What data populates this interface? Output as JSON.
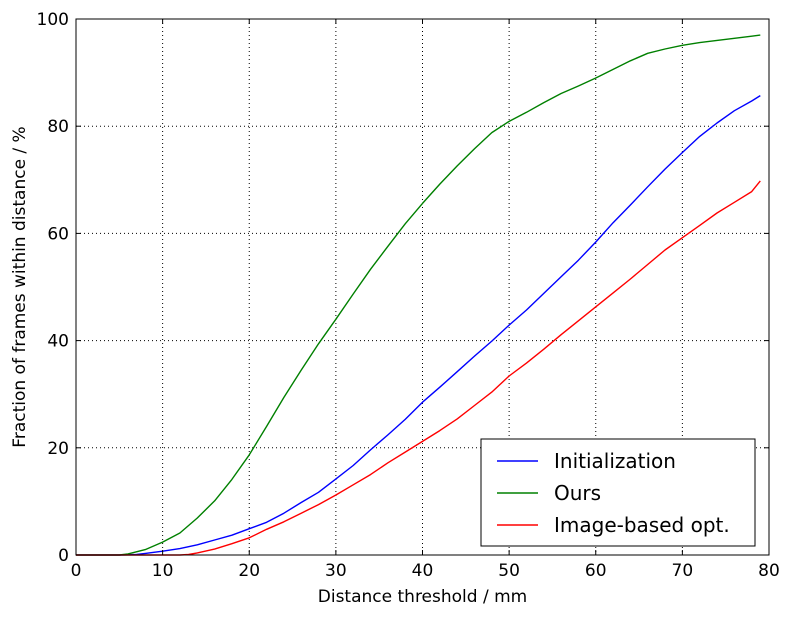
{
  "chart_data": {
    "type": "line",
    "title": "",
    "xlabel": "Distance threshold / mm",
    "ylabel": "Fraction of frames within distance / %",
    "xlim": [
      0,
      80
    ],
    "ylim": [
      0,
      100
    ],
    "xticks": [
      0,
      10,
      20,
      30,
      40,
      50,
      60,
      70,
      80
    ],
    "yticks": [
      0,
      20,
      40,
      60,
      80,
      100
    ],
    "grid": true,
    "legend_position": "lower-right",
    "series": [
      {
        "name": "Initialization",
        "color": "#0000ff",
        "x": [
          0,
          5,
          7,
          8,
          10,
          12,
          14,
          16,
          18,
          20,
          22,
          24,
          26,
          28,
          30,
          32,
          34,
          36,
          38,
          40,
          42,
          44,
          46,
          48,
          50,
          52,
          54,
          56,
          58,
          60,
          62,
          64,
          66,
          68,
          70,
          72,
          74,
          76,
          78,
          79
        ],
        "y": [
          0,
          0,
          0.1,
          0.3,
          0.7,
          1.2,
          1.9,
          2.8,
          3.7,
          4.9,
          6.1,
          7.8,
          9.8,
          11.7,
          14.2,
          16.7,
          19.6,
          22.4,
          25.3,
          28.5,
          31.3,
          34.2,
          37.1,
          39.9,
          42.9,
          45.7,
          48.8,
          51.9,
          55.0,
          58.4,
          62.0,
          65.3,
          68.7,
          72.0,
          75.1,
          78.1,
          80.6,
          82.9,
          84.7,
          85.7
        ]
      },
      {
        "name": "Ours",
        "color": "#008000",
        "x": [
          0,
          5,
          6,
          8,
          10,
          12,
          14,
          16,
          18,
          20,
          22,
          24,
          26,
          28,
          30,
          32,
          34,
          36,
          38,
          40,
          42,
          44,
          46,
          48,
          50,
          52,
          54,
          56,
          58,
          60,
          62,
          64,
          66,
          68,
          70,
          72,
          74,
          76,
          78,
          79
        ],
        "y": [
          0,
          0,
          0.2,
          1.0,
          2.4,
          4.1,
          6.9,
          10.1,
          14.1,
          18.7,
          24.0,
          29.4,
          34.5,
          39.4,
          44.0,
          48.7,
          53.3,
          57.6,
          61.8,
          65.6,
          69.2,
          72.6,
          75.8,
          78.8,
          80.9,
          82.6,
          84.4,
          86.1,
          87.5,
          89.0,
          90.6,
          92.2,
          93.6,
          94.4,
          95.1,
          95.6,
          96.0,
          96.4,
          96.8,
          97.0
        ]
      },
      {
        "name": "Image-based opt.",
        "color": "#ff0000",
        "x": [
          0,
          12,
          13,
          14,
          16,
          18,
          20,
          22,
          24,
          26,
          28,
          30,
          32,
          34,
          36,
          38,
          40,
          42,
          44,
          46,
          48,
          50,
          52,
          54,
          56,
          58,
          60,
          62,
          64,
          66,
          68,
          70,
          72,
          74,
          76,
          78,
          79
        ],
        "y": [
          0,
          0,
          0.1,
          0.4,
          1.1,
          2.1,
          3.2,
          4.8,
          6.2,
          7.8,
          9.4,
          11.2,
          13.1,
          15.0,
          17.2,
          19.2,
          21.2,
          23.2,
          25.4,
          27.9,
          30.4,
          33.4,
          35.8,
          38.4,
          41.1,
          43.7,
          46.3,
          48.9,
          51.5,
          54.2,
          56.9,
          59.2,
          61.5,
          63.8,
          65.8,
          67.8,
          69.8
        ]
      }
    ]
  }
}
